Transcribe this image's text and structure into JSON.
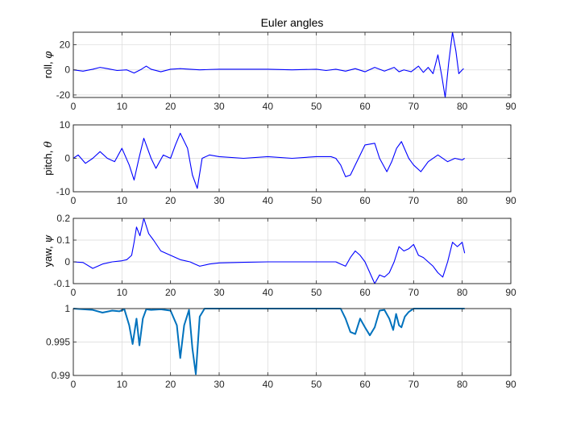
{
  "chart_data": [
    {
      "type": "line",
      "title": "Euler angles",
      "ylabel": "roll, ",
      "ylabel_symbol": "φ",
      "xlim": [
        0,
        90
      ],
      "ylim": [
        -22,
        30
      ],
      "xticks": [
        0,
        10,
        20,
        30,
        40,
        50,
        60,
        70,
        80,
        90
      ],
      "yticks": [
        -20,
        0,
        20
      ],
      "grid": true,
      "series": [
        {
          "color": "#0000ff",
          "x": [
            0,
            2,
            4,
            5.5,
            7,
            9,
            11,
            12.5,
            14,
            15,
            16,
            18,
            20,
            22,
            24,
            26,
            28,
            30,
            35,
            40,
            45,
            50,
            52,
            54,
            56,
            58,
            60,
            62,
            64,
            66,
            67,
            68,
            69.5,
            71,
            72,
            73,
            74,
            75,
            75.8,
            76.5,
            77.2,
            78,
            78.7,
            79.3,
            80,
            80.3
          ],
          "y": [
            0,
            -1,
            0.5,
            2,
            1,
            -0.5,
            0,
            -2.5,
            0.5,
            3,
            0.5,
            -1.5,
            0.5,
            1,
            0.5,
            0,
            0.3,
            0.5,
            0.5,
            0.5,
            0,
            0.5,
            -0.5,
            0.5,
            -1,
            1,
            -1.5,
            2,
            -1,
            2,
            -1.5,
            0,
            -1.5,
            3,
            -2,
            2,
            -3,
            12,
            -5,
            -22,
            5,
            30,
            15,
            -3,
            0,
            1
          ]
        }
      ]
    },
    {
      "type": "line",
      "title": "",
      "ylabel": "pitch, ",
      "ylabel_symbol": "θ",
      "xlim": [
        0,
        90
      ],
      "ylim": [
        -10,
        10
      ],
      "xticks": [
        0,
        10,
        20,
        30,
        40,
        50,
        60,
        70,
        80,
        90
      ],
      "yticks": [
        -10,
        0,
        10
      ],
      "grid": true,
      "series": [
        {
          "color": "#0000ff",
          "x": [
            0,
            1,
            2.5,
            4,
            5.5,
            7,
            8.5,
            10,
            11.5,
            12.5,
            13.5,
            14.5,
            16,
            17,
            18.5,
            20,
            21,
            22,
            23.5,
            24.5,
            25.5,
            26.5,
            28,
            30,
            35,
            40,
            45,
            50,
            53,
            54,
            55,
            56,
            57,
            58,
            59,
            60,
            62,
            63,
            64.5,
            65.5,
            66.5,
            67.5,
            69,
            70,
            71.5,
            73,
            75,
            77,
            78.5,
            80,
            80.5
          ],
          "y": [
            0,
            1,
            -1.5,
            0,
            2,
            0,
            -1,
            3,
            -2,
            -6.5,
            0,
            6,
            0,
            -3,
            1,
            0,
            4,
            7.5,
            3,
            -5,
            -9,
            0,
            1,
            0.5,
            0,
            0.5,
            0,
            0.5,
            0.5,
            0,
            -2,
            -5.5,
            -5,
            -2,
            1,
            4,
            4.5,
            0,
            -4,
            -1,
            3,
            5,
            0,
            -2,
            -4,
            -1,
            1,
            -1,
            0,
            -0.5,
            0
          ]
        }
      ]
    },
    {
      "type": "line",
      "title": "",
      "ylabel": "yaw, ",
      "ylabel_symbol": "ψ",
      "xlim": [
        0,
        90
      ],
      "ylim": [
        -0.1,
        0.2
      ],
      "xticks": [
        0,
        10,
        20,
        30,
        40,
        50,
        60,
        70,
        80,
        90
      ],
      "yticks": [
        -0.1,
        0,
        0.1,
        0.2
      ],
      "grid": true,
      "series": [
        {
          "color": "#0000ff",
          "x": [
            0,
            2,
            4,
            6,
            8,
            10,
            11,
            12,
            12.5,
            13,
            13.7,
            14.5,
            15.5,
            16.5,
            18,
            20,
            22,
            24,
            25,
            26,
            28,
            30,
            35,
            40,
            45,
            50,
            53,
            54,
            55,
            56,
            57,
            58,
            59,
            60,
            61,
            62,
            63,
            64,
            65,
            66,
            67,
            68,
            69,
            70,
            71,
            72,
            73,
            74,
            75,
            76,
            77,
            78,
            79,
            80,
            80.5
          ],
          "y": [
            0,
            -0.003,
            -0.03,
            -0.01,
            0,
            0.005,
            0.01,
            0.03,
            0.09,
            0.16,
            0.12,
            0.2,
            0.13,
            0.1,
            0.05,
            0.03,
            0.01,
            0,
            -0.01,
            -0.02,
            -0.01,
            -0.005,
            -0.002,
            0,
            0,
            0,
            0,
            0,
            -0.01,
            -0.02,
            0.02,
            0.05,
            0.03,
            0,
            -0.05,
            -0.1,
            -0.06,
            -0.07,
            -0.05,
            0,
            0.07,
            0.05,
            0.06,
            0.08,
            0.03,
            0.02,
            0,
            -0.02,
            -0.05,
            -0.07,
            0,
            0.09,
            0.07,
            0.09,
            0.04
          ]
        }
      ]
    },
    {
      "type": "line",
      "title": "",
      "ylabel": "",
      "ylabel_symbol": "",
      "xlim": [
        0,
        90
      ],
      "ylim": [
        0.99,
        1
      ],
      "xticks": [
        0,
        10,
        20,
        30,
        40,
        50,
        60,
        70,
        80,
        90
      ],
      "yticks": [
        0.99,
        0.995,
        1
      ],
      "ytick_labels": [
        "0.99",
        "0.995",
        "1"
      ],
      "grid": true,
      "series": [
        {
          "color": "#0072bd",
          "x": [
            0,
            4,
            6,
            8,
            9.5,
            10.5,
            11.5,
            12.2,
            13,
            13.6,
            14.3,
            15,
            16,
            18,
            20,
            21.3,
            22,
            22.8,
            23.8,
            24.5,
            25.2,
            26,
            27,
            30,
            40,
            50,
            55,
            56,
            57,
            58,
            59,
            60,
            61,
            62,
            63,
            64,
            65,
            65.8,
            66.4,
            67,
            67.5,
            68.2,
            69,
            70,
            72,
            80.5
          ],
          "y": [
            1,
            0.9998,
            0.9994,
            0.9997,
            0.9996,
            0.9999,
            0.9975,
            0.9947,
            0.9985,
            0.9945,
            0.9985,
            0.9999,
            0.9998,
            0.9999,
            0.9997,
            0.9975,
            0.9926,
            0.9975,
            0.9998,
            0.994,
            0.9902,
            0.9988,
            1,
            1,
            1,
            1,
            1,
            0.9985,
            0.9965,
            0.9962,
            0.9985,
            0.9972,
            0.996,
            0.9972,
            0.9997,
            0.9998,
            0.9985,
            0.9968,
            0.9992,
            0.9975,
            0.9972,
            0.9988,
            0.9995,
            1,
            1,
            1
          ]
        }
      ]
    }
  ]
}
